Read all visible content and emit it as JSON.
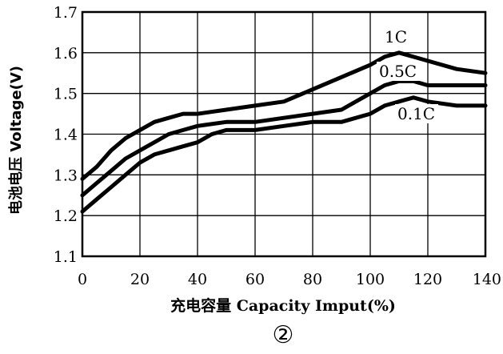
{
  "chart_data": {
    "type": "line",
    "title": "",
    "xlabel": "充电容量 Capacity Imput(%)",
    "ylabel": "电池电压 Voltage(V)",
    "figure_label": "②",
    "xlim": [
      0,
      140
    ],
    "ylim": [
      1.1,
      1.7
    ],
    "xticks": [
      "0",
      "20",
      "40",
      "60",
      "80",
      "100",
      "120",
      "140"
    ],
    "yticks": [
      "1.1",
      "1.2",
      "1.3",
      "1.4",
      "1.5",
      "1.6",
      "1.7"
    ],
    "grid": true,
    "series": [
      {
        "name": "1C",
        "x": [
          0,
          5,
          10,
          15,
          20,
          25,
          30,
          35,
          40,
          50,
          60,
          70,
          80,
          90,
          100,
          105,
          110,
          115,
          120,
          130,
          140
        ],
        "y": [
          1.29,
          1.32,
          1.36,
          1.39,
          1.41,
          1.43,
          1.44,
          1.45,
          1.45,
          1.46,
          1.47,
          1.48,
          1.51,
          1.54,
          1.57,
          1.59,
          1.6,
          1.59,
          1.58,
          1.56,
          1.55
        ]
      },
      {
        "name": "0.5C",
        "x": [
          0,
          5,
          10,
          15,
          20,
          25,
          30,
          35,
          40,
          50,
          60,
          70,
          80,
          90,
          95,
          100,
          105,
          110,
          115,
          120,
          130,
          140
        ],
        "y": [
          1.25,
          1.28,
          1.31,
          1.34,
          1.36,
          1.38,
          1.4,
          1.41,
          1.42,
          1.43,
          1.43,
          1.44,
          1.45,
          1.46,
          1.48,
          1.5,
          1.52,
          1.53,
          1.53,
          1.52,
          1.52,
          1.52
        ]
      },
      {
        "name": "0.1C",
        "x": [
          0,
          5,
          10,
          15,
          20,
          25,
          30,
          35,
          40,
          45,
          50,
          60,
          70,
          80,
          90,
          95,
          100,
          105,
          110,
          115,
          120,
          130,
          140
        ],
        "y": [
          1.21,
          1.24,
          1.27,
          1.3,
          1.33,
          1.35,
          1.36,
          1.37,
          1.38,
          1.4,
          1.41,
          1.41,
          1.42,
          1.43,
          1.43,
          1.44,
          1.45,
          1.47,
          1.48,
          1.49,
          1.48,
          1.47,
          1.47
        ]
      }
    ]
  }
}
